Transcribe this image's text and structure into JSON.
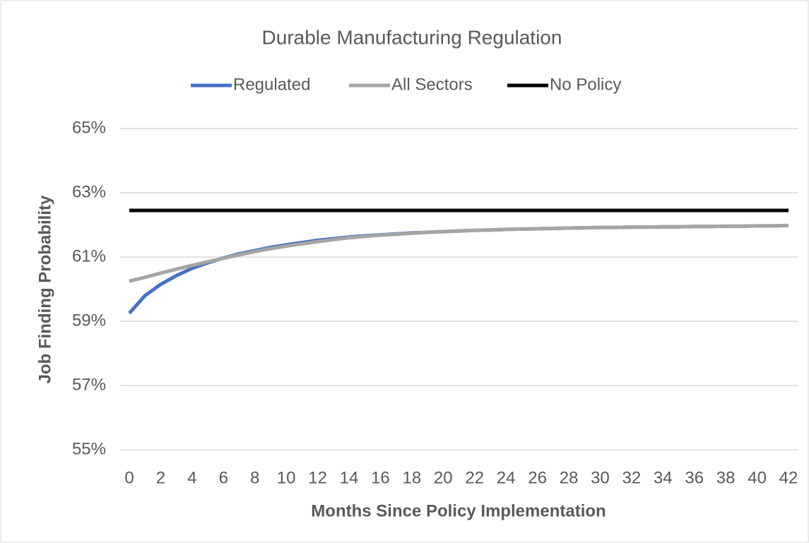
{
  "chart_data": {
    "type": "line",
    "title": "Durable Manufacturing Regulation",
    "x_label": "Months Since Policy Implementation",
    "y_label": "Job Finding Probability",
    "x": [
      0,
      1,
      2,
      3,
      4,
      5,
      6,
      7,
      8,
      9,
      10,
      11,
      12,
      13,
      14,
      15,
      16,
      17,
      18,
      19,
      20,
      21,
      22,
      23,
      24,
      25,
      26,
      27,
      28,
      29,
      30,
      31,
      32,
      33,
      34,
      35,
      36,
      37,
      38,
      39,
      40,
      41,
      42
    ],
    "series": [
      {
        "name": "Regulated",
        "color": "#4472c4",
        "values": [
          59.25,
          59.8,
          60.15,
          60.42,
          60.65,
          60.82,
          60.97,
          61.1,
          61.2,
          61.3,
          61.38,
          61.45,
          61.52,
          61.57,
          61.62,
          61.66,
          61.69,
          61.72,
          61.75,
          61.77,
          61.79,
          61.81,
          61.83,
          61.84,
          61.86,
          61.87,
          61.88,
          61.89,
          61.9,
          61.91,
          61.92,
          61.92,
          61.93,
          61.93,
          61.94,
          61.94,
          61.95,
          61.95,
          61.96,
          61.96,
          61.97,
          61.97,
          61.98
        ]
      },
      {
        "name": "All Sectors",
        "color": "#a5a5a5",
        "values": [
          60.25,
          60.37,
          60.5,
          60.62,
          60.74,
          60.85,
          60.96,
          61.07,
          61.17,
          61.26,
          61.34,
          61.41,
          61.48,
          61.54,
          61.6,
          61.64,
          61.68,
          61.71,
          61.74,
          61.77,
          61.79,
          61.81,
          61.83,
          61.84,
          61.86,
          61.87,
          61.88,
          61.89,
          61.9,
          61.91,
          61.92,
          61.92,
          61.93,
          61.93,
          61.94,
          61.94,
          61.95,
          61.95,
          61.96,
          61.96,
          61.97,
          61.97,
          61.98
        ]
      },
      {
        "name": "No Policy",
        "color": "#000000",
        "values": [
          62.45,
          62.45,
          62.45,
          62.45,
          62.45,
          62.45,
          62.45,
          62.45,
          62.45,
          62.45,
          62.45,
          62.45,
          62.45,
          62.45,
          62.45,
          62.45,
          62.45,
          62.45,
          62.45,
          62.45,
          62.45,
          62.45,
          62.45,
          62.45,
          62.45,
          62.45,
          62.45,
          62.45,
          62.45,
          62.45,
          62.45,
          62.45,
          62.45,
          62.45,
          62.45,
          62.45,
          62.45,
          62.45,
          62.45,
          62.45,
          62.45,
          62.45,
          62.45
        ]
      }
    ],
    "xlim": [
      0,
      42
    ],
    "xticks": [
      0,
      2,
      4,
      6,
      8,
      10,
      12,
      14,
      16,
      18,
      20,
      22,
      24,
      26,
      28,
      30,
      32,
      34,
      36,
      38,
      40,
      42
    ],
    "ylim": [
      55,
      65
    ],
    "yticks": [
      {
        "value": 55,
        "label": "55%"
      },
      {
        "value": 57,
        "label": "57%"
      },
      {
        "value": 59,
        "label": "59%"
      },
      {
        "value": 61,
        "label": "61%"
      },
      {
        "value": 63,
        "label": "63%"
      },
      {
        "value": 65,
        "label": "65%"
      }
    ],
    "grid": true,
    "legend": "top"
  }
}
